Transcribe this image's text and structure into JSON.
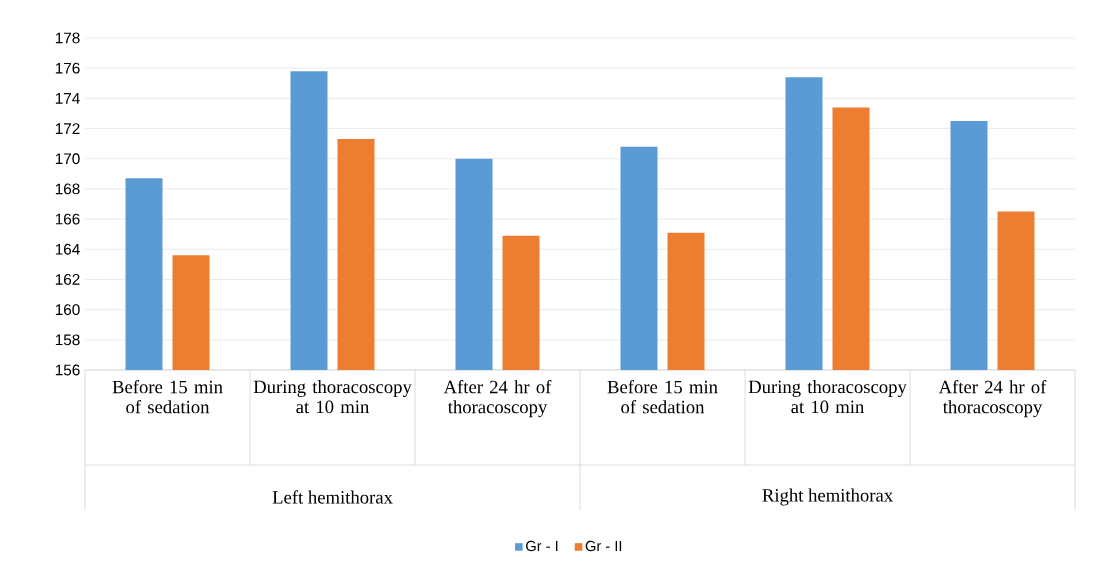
{
  "chart_data": {
    "type": "bar",
    "categories": [
      "Before 15 min of sedation",
      "During thoracoscopy at 10 min",
      "After 24 hr of thoracoscopy",
      "Before 15 min of sedation",
      "During thoracoscopy at 10 min",
      "After 24 hr of thoracoscopy"
    ],
    "series": [
      {
        "name": "Gr - I",
        "color": "#5b9bd5",
        "values": [
          168.7,
          175.8,
          170.0,
          170.8,
          175.4,
          172.5
        ]
      },
      {
        "name": "Gr - II",
        "color": "#ed7d31",
        "values": [
          163.6,
          171.3,
          164.9,
          165.1,
          173.4,
          166.5
        ]
      }
    ],
    "ylim": [
      156,
      178
    ],
    "yticks": [
      156,
      158,
      160,
      162,
      164,
      166,
      168,
      170,
      172,
      174,
      176,
      178
    ],
    "grid": "y",
    "legend": "bottom",
    "annotations": [
      "Left  hemithorax",
      "Right hemithorax"
    ]
  }
}
